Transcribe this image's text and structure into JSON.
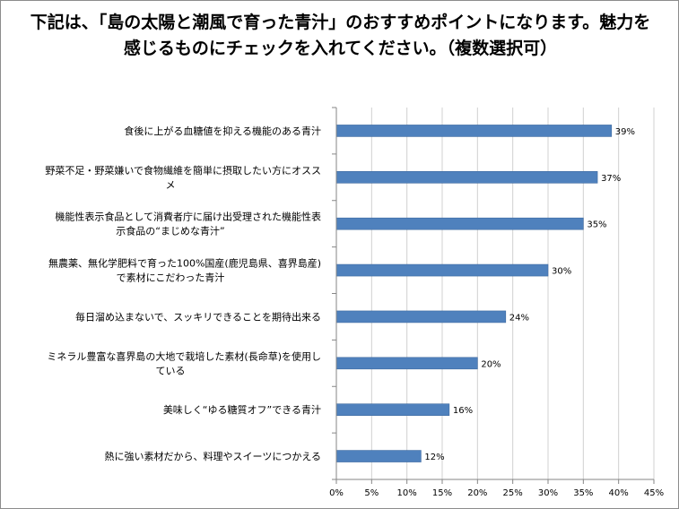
{
  "chart_data": {
    "type": "bar",
    "orientation": "horizontal",
    "title": "下記は、「島の太陽と潮風で育った青汁」のおすすめポイントになります。魅力を感じるものにチェックを入れてください。（複数選択可）",
    "categories": [
      [
        "食後に上がる血糖値を抑える機能のある青汁"
      ],
      [
        "野菜不足・野菜嫌いで食物繊維を簡単に摂取したい方にオスス",
        "メ"
      ],
      [
        "機能性表示食品として消費者庁に届け出受理された機能性表",
        "示食品の“まじめな青汁”"
      ],
      [
        "無農薬、無化学肥料で育った100%国産(鹿児島県、喜界島産)",
        "で素材にこだわった青汁"
      ],
      [
        "毎日溜め込まないで、スッキリできることを期待出来る"
      ],
      [
        "ミネラル豊富な喜界島の大地で栽培した素材(長命草)を使用し",
        "ている"
      ],
      [
        "美味しく“ゆる糖質オフ”できる青汁"
      ],
      [
        "熱に強い素材だから、料理やスイーツにつかえる"
      ]
    ],
    "values": [
      39,
      37,
      35,
      30,
      24,
      20,
      16,
      12
    ],
    "data_labels": [
      "39%",
      "37%",
      "35%",
      "30%",
      "24%",
      "20%",
      "16%",
      "12%"
    ],
    "xlim": [
      0,
      45
    ],
    "xticks": [
      "0%",
      "5%",
      "10%",
      "15%",
      "20%",
      "25%",
      "30%",
      "35%",
      "40%",
      "45%"
    ],
    "grid": true,
    "colors": {
      "bar": "#4f81bd",
      "bar_edge": "#3e6aa0",
      "grid": "#d0d0d0",
      "axis": "#868686"
    }
  }
}
